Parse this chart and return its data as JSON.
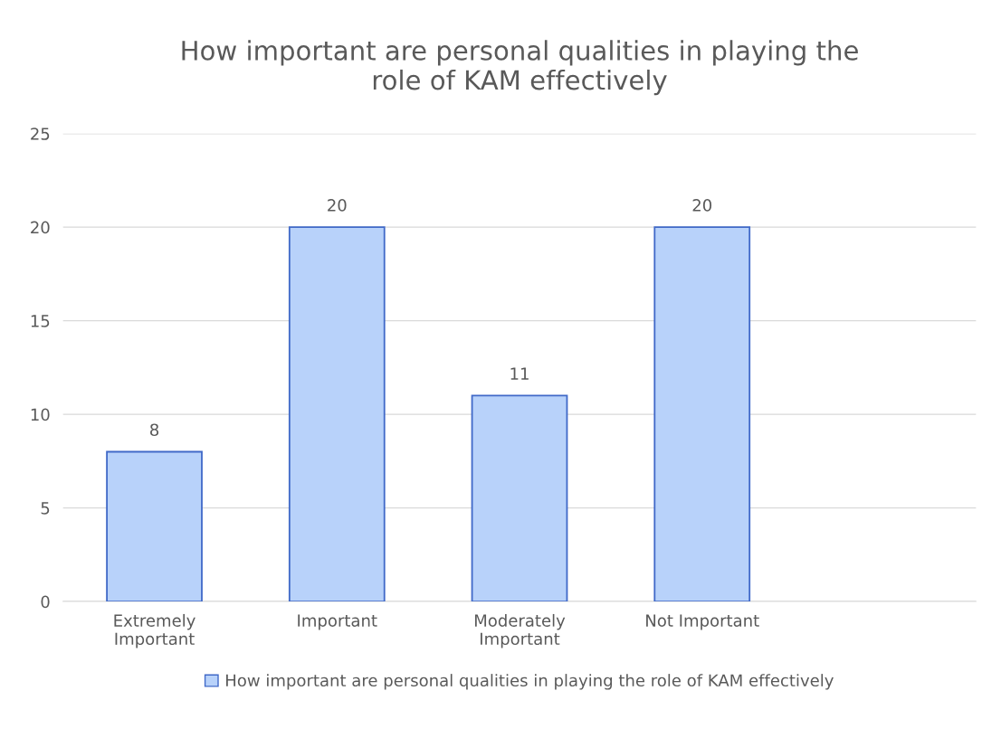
{
  "chart_data": {
    "type": "bar",
    "title": "How important are personal qualities in playing the\nrole of KAM effectively",
    "categories": [
      "Extremely\nImportant",
      "Important",
      "Moderately\nImportant",
      "Not Important",
      null
    ],
    "series": [
      {
        "name": "How important are personal qualities in playing the role of KAM effectively",
        "color": "#b8d2fa",
        "values": [
          8,
          20,
          11,
          20,
          null
        ]
      }
    ],
    "ylim": [
      0,
      25
    ],
    "yticks": [
      0,
      5,
      10,
      15,
      20,
      25
    ],
    "grid": "y",
    "legend": "bottom",
    "data_labels": true
  }
}
